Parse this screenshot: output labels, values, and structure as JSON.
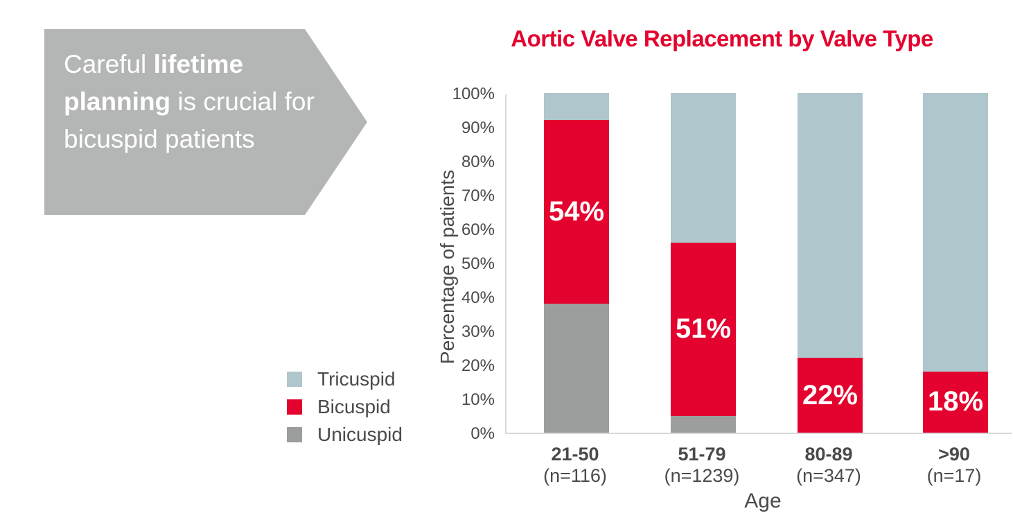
{
  "callout": {
    "text_before_bold": "Careful ",
    "text_bold": "lifetime planning",
    "text_after_bold": " is crucial for bicuspid patients",
    "bg_color": "#b3b6b5",
    "text_color": "#ffffff"
  },
  "chart_data": {
    "type": "bar",
    "stacked": true,
    "title": "Aortic Valve Replacement by Valve Type",
    "title_color": "#e4032e",
    "xlabel": "Age",
    "ylabel": "Percentage of patients",
    "ylim": [
      0,
      100
    ],
    "ytick_step": 10,
    "ytick_suffix": "%",
    "grid": false,
    "axis_color": "#d9d9d9",
    "text_color": "#4a4a4a",
    "legend_position": "bottom-left",
    "categories": [
      {
        "label": "21-50",
        "n_label": "(n=116)"
      },
      {
        "label": "51-79",
        "n_label": "(n=1239)"
      },
      {
        "label": "80-89",
        "n_label": "(n=347)"
      },
      {
        "label": ">90",
        "n_label": "(n=17)"
      }
    ],
    "series": [
      {
        "name": "Unicuspid",
        "color": "#9c9e9e",
        "values": [
          38,
          5,
          0,
          0
        ]
      },
      {
        "name": "Bicuspid",
        "color": "#e4032e",
        "values": [
          54,
          51,
          22,
          18
        ],
        "value_labels": [
          "54%",
          "51%",
          "22%",
          "18%"
        ],
        "label_color": "#ffffff"
      },
      {
        "name": "Tricuspid",
        "color": "#aec6cc",
        "values": [
          8,
          44,
          78,
          82
        ]
      }
    ],
    "legend": [
      "Tricuspid",
      "Bicuspid",
      "Unicuspid"
    ]
  }
}
